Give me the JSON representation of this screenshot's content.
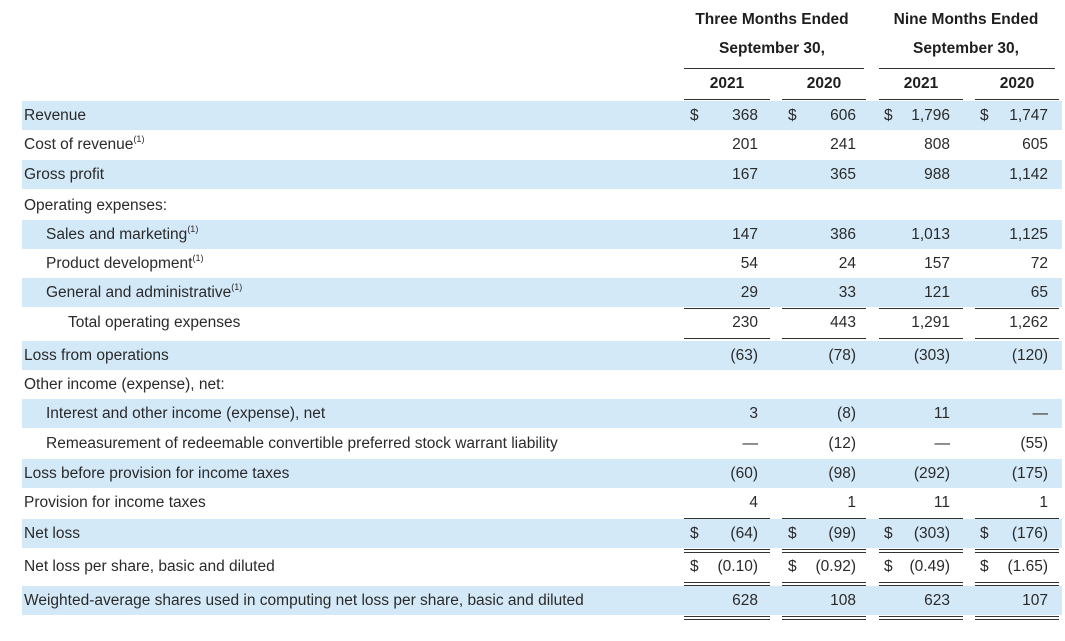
{
  "header": {
    "three_months_line1": "Three Months Ended",
    "three_months_line2": "September 30,",
    "nine_months_line1": "Nine Months Ended",
    "nine_months_line2": "September 30,",
    "years": [
      "2021",
      "2020",
      "2021",
      "2020"
    ]
  },
  "currency_symbol": "$",
  "rows": [
    {
      "label": "Revenue",
      "sup": "",
      "indent": 0,
      "shaded": true,
      "dollar": true,
      "values": [
        "368",
        "606",
        "1,796",
        "1,747"
      ]
    },
    {
      "label": "Cost of revenue",
      "sup": "(1)",
      "indent": 0,
      "shaded": false,
      "dollar": false,
      "values": [
        "201",
        "241",
        "808",
        "605"
      ]
    },
    {
      "label": "Gross profit",
      "sup": "",
      "indent": 0,
      "shaded": true,
      "dollar": false,
      "values": [
        "167",
        "365",
        "988",
        "1,142"
      ]
    },
    {
      "label": "Operating expenses:",
      "sup": "",
      "indent": 0,
      "shaded": false,
      "dollar": false,
      "values": [
        "",
        "",
        "",
        ""
      ]
    },
    {
      "label": "Sales and marketing",
      "sup": "(1)",
      "indent": 1,
      "shaded": true,
      "dollar": false,
      "values": [
        "147",
        "386",
        "1,013",
        "1,125"
      ]
    },
    {
      "label": "Product development",
      "sup": "(1)",
      "indent": 1,
      "shaded": false,
      "dollar": false,
      "values": [
        "54",
        "24",
        "157",
        "72"
      ]
    },
    {
      "label": "General and administrative",
      "sup": "(1)",
      "indent": 1,
      "shaded": true,
      "dollar": false,
      "values": [
        "29",
        "33",
        "121",
        "65"
      ]
    },
    {
      "label": "Total operating expenses",
      "sup": "",
      "indent": 2,
      "shaded": false,
      "dollar": false,
      "values": [
        "230",
        "443",
        "1,291",
        "1,262"
      ]
    },
    {
      "label": "Loss from operations",
      "sup": "",
      "indent": 0,
      "shaded": true,
      "dollar": false,
      "values": [
        "(63)",
        "(78)",
        "(303)",
        "(120)"
      ]
    },
    {
      "label": "Other income (expense), net:",
      "sup": "",
      "indent": 0,
      "shaded": false,
      "dollar": false,
      "values": [
        "",
        "",
        "",
        ""
      ]
    },
    {
      "label": "Interest and other income (expense), net",
      "sup": "",
      "indent": 1,
      "shaded": true,
      "dollar": false,
      "values": [
        "3",
        "(8)",
        "11",
        "—"
      ]
    },
    {
      "label": "Remeasurement of redeemable convertible preferred stock warrant liability",
      "sup": "",
      "indent": 1,
      "shaded": false,
      "dollar": false,
      "values": [
        "—",
        "(12)",
        "—",
        "(55)"
      ]
    },
    {
      "label": "Loss before provision for income taxes",
      "sup": "",
      "indent": 0,
      "shaded": true,
      "dollar": false,
      "values": [
        "(60)",
        "(98)",
        "(292)",
        "(175)"
      ]
    },
    {
      "label": "Provision for income taxes",
      "sup": "",
      "indent": 0,
      "shaded": false,
      "dollar": false,
      "values": [
        "4",
        "1",
        "11",
        "1"
      ]
    },
    {
      "label": "Net loss",
      "sup": "",
      "indent": 0,
      "shaded": true,
      "dollar": true,
      "values": [
        "(64)",
        "(99)",
        "(303)",
        "(176)"
      ]
    },
    {
      "label": "Net loss per share, basic and diluted",
      "sup": "",
      "indent": 0,
      "shaded": false,
      "dollar": true,
      "values": [
        "(0.10)",
        "(0.92)",
        "(0.49)",
        "(1.65)"
      ]
    },
    {
      "label": "Weighted-average shares used in computing net loss per share, basic and diluted",
      "sup": "",
      "indent": 0,
      "shaded": true,
      "dollar": false,
      "values": [
        "628",
        "108",
        "623",
        "107"
      ]
    }
  ]
}
